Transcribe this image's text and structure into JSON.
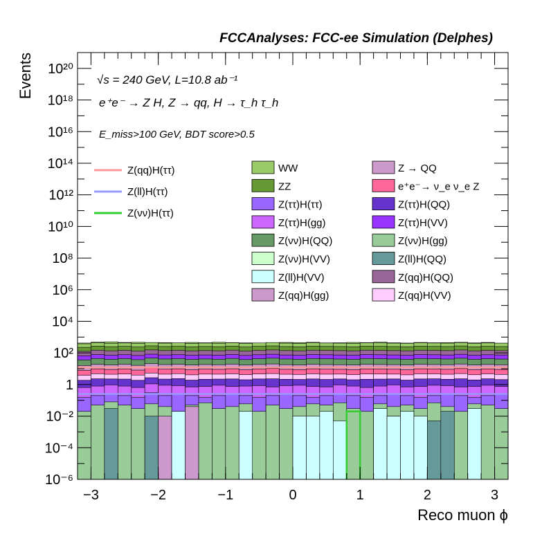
{
  "header": {
    "title": "FCCAnalyses: FCC-ee Simulation (Delphes)"
  },
  "annotations": {
    "line1": "√s = 240 GeV, L=10.8 ab⁻¹",
    "line2": "e⁺e⁻ → Z H, Z → qq, H → τ_h τ_h",
    "line3": "E_miss>100 GeV, BDT score>0.5"
  },
  "colors": {
    "WW": "#99cc66",
    "ZZ": "#669933",
    "Z(tt)H(tt)": "#9966ff",
    "Z(tt)H(gg)": "#cc66ff",
    "Z(vv)H(QQ)": "#669966",
    "Z(vv)H(VV)": "#ccffcc",
    "Z(ll)H(VV)": "#ccffff",
    "Z(qq)H(gg)": "#cc99cc",
    "Z->QQ": "#cc99cc",
    "ee->vvZ": "#ff6699",
    "Z(tt)H(QQ)": "#6633cc",
    "Z(tt)H(VV)": "#9933ff",
    "Z(vv)H(gg)": "#99cc99",
    "Z(ll)H(QQ)": "#669999",
    "Z(qq)H(QQ)": "#996699",
    "Z(qq)H(VV)": "#ffccff",
    "sig_qq": "#ff9999",
    "sig_ll": "#9999ff",
    "sig_vv": "#33cc33"
  },
  "chart_data": {
    "type": "bar",
    "stacked": true,
    "xlabel": "Reco muon ϕ",
    "ylabel": "Events",
    "xlim": [
      -3.2,
      3.2
    ],
    "ylim": [
      1e-06,
      1e+21
    ],
    "yscale": "log",
    "bins": 32,
    "x_ticks": [
      "−3",
      "−2",
      "−1",
      "0",
      "1",
      "2",
      "3"
    ],
    "y_ticks": [
      "10⁻⁶",
      "10⁻⁴",
      "10⁻²",
      "1",
      "10²",
      "10⁴",
      "10⁶",
      "10⁸",
      "10¹⁰",
      "10¹²",
      "10¹⁴",
      "10¹⁶",
      "10¹⁸",
      "10²⁰"
    ],
    "total": [
      420,
      480,
      500,
      460,
      470,
      440,
      450,
      430,
      460,
      440,
      470,
      450,
      430,
      420,
      440,
      460,
      450,
      470,
      430,
      440,
      460,
      450,
      480,
      440,
      420,
      460,
      440,
      450,
      470,
      430,
      460,
      410
    ],
    "background_legend": [
      {
        "name": "WW",
        "color_key": "WW"
      },
      {
        "name": "Z → QQ",
        "color_key": "Z->QQ"
      },
      {
        "name": "ZZ",
        "color_key": "ZZ"
      },
      {
        "name": "e⁺e⁻→ ν_e ν_e Z",
        "color_key": "ee->vvZ"
      },
      {
        "name": "Z(ττ)H(ττ)",
        "color_key": "Z(tt)H(tt)"
      },
      {
        "name": "Z(ττ)H(QQ)",
        "color_key": "Z(tt)H(QQ)"
      },
      {
        "name": "Z(ττ)H(gg)",
        "color_key": "Z(tt)H(gg)"
      },
      {
        "name": "Z(ττ)H(VV)",
        "color_key": "Z(tt)H(VV)"
      },
      {
        "name": "Z(νν)H(QQ)",
        "color_key": "Z(vv)H(QQ)"
      },
      {
        "name": "Z(νν)H(gg)",
        "color_key": "Z(vv)H(gg)"
      },
      {
        "name": "Z(νν)H(VV)",
        "color_key": "Z(vv)H(VV)"
      },
      {
        "name": "Z(ll)H(QQ)",
        "color_key": "Z(ll)H(QQ)"
      },
      {
        "name": "Z(ll)H(VV)",
        "color_key": "Z(ll)H(VV)"
      },
      {
        "name": "Z(qq)H(QQ)",
        "color_key": "Z(qq)H(QQ)"
      },
      {
        "name": "Z(qq)H(gg)",
        "color_key": "Z(qq)H(gg)"
      },
      {
        "name": "Z(qq)H(VV)",
        "color_key": "Z(qq)H(VV)"
      }
    ],
    "signal_legend": [
      {
        "name": "Z(qq)H(ττ)",
        "color_key": "sig_qq"
      },
      {
        "name": "Z(ll)H(ττ)",
        "color_key": "sig_ll"
      },
      {
        "name": "Z(νν)H(ττ)",
        "color_key": "sig_vv"
      }
    ],
    "signals": {
      "Z(qq)H(ττ)": 12,
      "Z(ll)H(ττ)": 0.25,
      "Z(νν)H(ττ)": {
        "bins": [
          20
        ],
        "value": 0.02
      }
    },
    "low_layers": [
      {
        "key": "Z(vv)H(gg)",
        "values": [
          0.02,
          0.05,
          0.08,
          0.05,
          0.03,
          0.06,
          0.04,
          0.02,
          0.05,
          0.07,
          0.03,
          0.04,
          0.06,
          0.02,
          0.05,
          0.03,
          0.04,
          0.06,
          0.05,
          0.07,
          0.03,
          0.02,
          0.06,
          0.04,
          0.05,
          0.03,
          0.07,
          0.04,
          0.02,
          0.06,
          0.05,
          0.03
        ]
      },
      {
        "key": "Z(ll)H(QQ)",
        "values": [
          0,
          0,
          0.03,
          0,
          0,
          0.01,
          0,
          0,
          0,
          0,
          0,
          0,
          0,
          0,
          0,
          0,
          0,
          0,
          0,
          0,
          0,
          0,
          0,
          0.01,
          0,
          0,
          0.005,
          0.02,
          0,
          0,
          0,
          0
        ]
      },
      {
        "key": "Z(qq)H(gg)",
        "values": [
          0,
          0,
          0,
          0,
          0,
          0,
          0.01,
          0.01,
          0.04,
          0,
          0,
          0,
          0,
          0,
          0,
          0,
          0,
          0,
          0,
          0,
          0,
          0,
          0,
          0,
          0,
          0,
          0,
          0,
          0,
          0,
          0,
          0
        ]
      },
      {
        "key": "Z(ll)H(VV)",
        "values": [
          0,
          0,
          0,
          0,
          0,
          0,
          0,
          0.02,
          0,
          0,
          0,
          0,
          0.02,
          0,
          0,
          0,
          0.01,
          0.01,
          0.02,
          0.005,
          0,
          0,
          0.03,
          0.01,
          0.02,
          0.01,
          0,
          0,
          0,
          0.03,
          0,
          0
        ]
      }
    ],
    "mid_layers": [
      {
        "key": "Z(tt)H(tt)",
        "values": [
          0.15,
          0.2,
          0.25,
          0.2,
          0.15,
          0.3,
          0.2,
          0.25,
          0.2,
          0.15,
          0.2,
          0.25,
          0.2,
          0.15,
          0.2,
          0.25,
          0.2,
          0.15,
          0.2,
          0.25,
          0.2,
          0.15,
          0.2,
          0.25,
          0.2,
          0.15,
          0.2,
          0.25,
          0.2,
          0.15,
          0.2,
          0.25
        ]
      },
      {
        "key": "Z(tt)H(gg)",
        "values": [
          0.5,
          0.6,
          0.7,
          0.6,
          0.5,
          0.8,
          0.7,
          0.6,
          0.5,
          0.6,
          0.7,
          0.5,
          0.6,
          0.7,
          0.5,
          0.6,
          0.7,
          0.6,
          0.5,
          0.7,
          0.6,
          0.5,
          0.6,
          0.7,
          0.5,
          0.6,
          0.7,
          0.6,
          0.5,
          0.6,
          0.7,
          0.5
        ]
      },
      {
        "key": "Z(tt)H(QQ)",
        "values": [
          1.2,
          1.5,
          1.3,
          1.4,
          1.2,
          1.6,
          1.3,
          1.5,
          1.2,
          1.4,
          1.3,
          1.5,
          1.2,
          1.4,
          1.6,
          1.3,
          1.2,
          1.5,
          1.4,
          1.3,
          1.2,
          1.5,
          1.4,
          1.3,
          1.2,
          1.5,
          1.4,
          1.3,
          1.6,
          1.2,
          1.4,
          1.3
        ]
      },
      {
        "key": "Z(qq)H(VV)",
        "values": [
          2,
          2.5,
          2.2,
          2.4,
          2.1,
          2.6,
          2.3,
          2.5,
          2.2,
          2.4,
          2.3,
          2.5,
          2.2,
          2.4,
          2.6,
          2.3,
          2.2,
          2.5,
          2.4,
          2.3,
          2.2,
          2.5,
          2.4,
          2.3,
          2.2,
          2.5,
          2.4,
          2.3,
          2.6,
          2.2,
          2.4,
          2.3
        ]
      },
      {
        "key": "ee->vvZ",
        "values": [
          4,
          5,
          4.5,
          5,
          4.2,
          5.5,
          4.8,
          5,
          4.5,
          4.8,
          4.6,
          5.2,
          4.4,
          4.9,
          5.4,
          4.7,
          4.5,
          5.1,
          4.8,
          4.6,
          4.5,
          5,
          4.9,
          4.7,
          4.5,
          5.1,
          4.8,
          4.7,
          5.3,
          4.5,
          4.9,
          4.6
        ]
      },
      {
        "key": "Z(qq)H(gg)",
        "values": [
          8,
          9,
          8.5,
          9.5,
          8.2,
          10,
          9,
          9.2,
          8.5,
          9,
          8.8,
          9.6,
          8.4,
          9.1,
          9.8,
          8.9,
          8.6,
          9.4,
          9,
          8.8,
          8.6,
          9.3,
          9.1,
          8.9,
          8.6,
          9.4,
          9,
          8.9,
          9.7,
          8.6,
          9.1,
          8.8
        ]
      },
      {
        "key": "Z(vv)H(QQ)",
        "values": [
          20,
          25,
          22,
          24,
          21,
          26,
          23,
          24,
          22,
          23,
          22,
          25,
          21,
          24,
          26,
          23,
          22,
          25,
          24,
          23,
          22,
          25,
          24,
          23,
          22,
          25,
          24,
          23,
          26,
          22,
          24,
          23
        ]
      },
      {
        "key": "Z(tt)H(VV)",
        "values": [
          30,
          35,
          32,
          34,
          31,
          36,
          33,
          34,
          32,
          33,
          32,
          35,
          31,
          34,
          36,
          33,
          32,
          35,
          34,
          33,
          32,
          35,
          34,
          33,
          32,
          35,
          34,
          33,
          36,
          32,
          34,
          33
        ]
      },
      {
        "key": "Z(qq)H(QQ)",
        "values": [
          60,
          70,
          65,
          68,
          62,
          72,
          66,
          68,
          64,
          66,
          65,
          70,
          62,
          68,
          72,
          66,
          64,
          70,
          68,
          66,
          64,
          70,
          68,
          66,
          64,
          70,
          68,
          66,
          72,
          64,
          68,
          66
        ]
      },
      {
        "key": "ZZ",
        "values": [
          100,
          120,
          110,
          115,
          105,
          125,
          112,
          118,
          108,
          114,
          110,
          120,
          106,
          116,
          124,
          112,
          108,
          118,
          114,
          112,
          108,
          118,
          116,
          112,
          108,
          118,
          114,
          112,
          122,
          108,
          116,
          112
        ]
      },
      {
        "key": "WW",
        "values": [
          150,
          170,
          160,
          165,
          155,
          175,
          162,
          168,
          158,
          164,
          160,
          170,
          156,
          166,
          174,
          162,
          158,
          168,
          164,
          162,
          158,
          168,
          166,
          162,
          158,
          168,
          164,
          162,
          172,
          158,
          166,
          162
        ]
      }
    ]
  }
}
